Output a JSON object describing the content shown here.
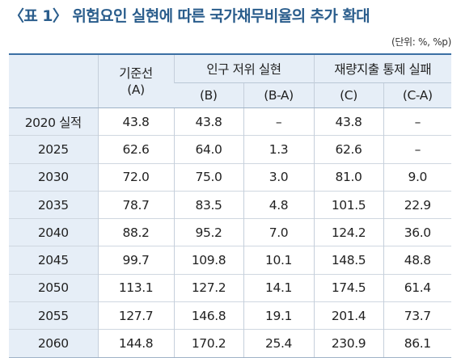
{
  "title": "〈표 1〉 위험요인 실현에 따른 국가채무비율의 추가 확대",
  "unit": "(단위: %, %p)",
  "header": {
    "baseline_line1": "기준선",
    "baseline_line2": "(A)",
    "group1": "인구 저위 실현",
    "group2": "재량지출 통제 실패",
    "sub": [
      "(B)",
      "(B-A)",
      "(C)",
      "(C-A)"
    ]
  },
  "rows": [
    {
      "year": "2020 실적",
      "a": "43.8",
      "b": "43.8",
      "ba": "–",
      "c": "43.8",
      "ca": "–"
    },
    {
      "year": "2025",
      "a": "62.6",
      "b": "64.0",
      "ba": "1.3",
      "c": "62.6",
      "ca": "–"
    },
    {
      "year": "2030",
      "a": "72.0",
      "b": "75.0",
      "ba": "3.0",
      "c": "81.0",
      "ca": "9.0"
    },
    {
      "year": "2035",
      "a": "78.7",
      "b": "83.5",
      "ba": "4.8",
      "c": "101.5",
      "ca": "22.9"
    },
    {
      "year": "2040",
      "a": "88.2",
      "b": "95.2",
      "ba": "7.0",
      "c": "124.2",
      "ca": "36.0"
    },
    {
      "year": "2045",
      "a": "99.7",
      "b": "109.8",
      "ba": "10.1",
      "c": "148.5",
      "ca": "48.8"
    },
    {
      "year": "2050",
      "a": "113.1",
      "b": "127.2",
      "ba": "14.1",
      "c": "174.5",
      "ca": "61.4"
    },
    {
      "year": "2055",
      "a": "127.7",
      "b": "146.8",
      "ba": "19.1",
      "c": "201.4",
      "ca": "73.7"
    },
    {
      "year": "2060",
      "a": "144.8",
      "b": "170.2",
      "ba": "25.4",
      "c": "230.9",
      "ca": "86.1"
    }
  ]
}
